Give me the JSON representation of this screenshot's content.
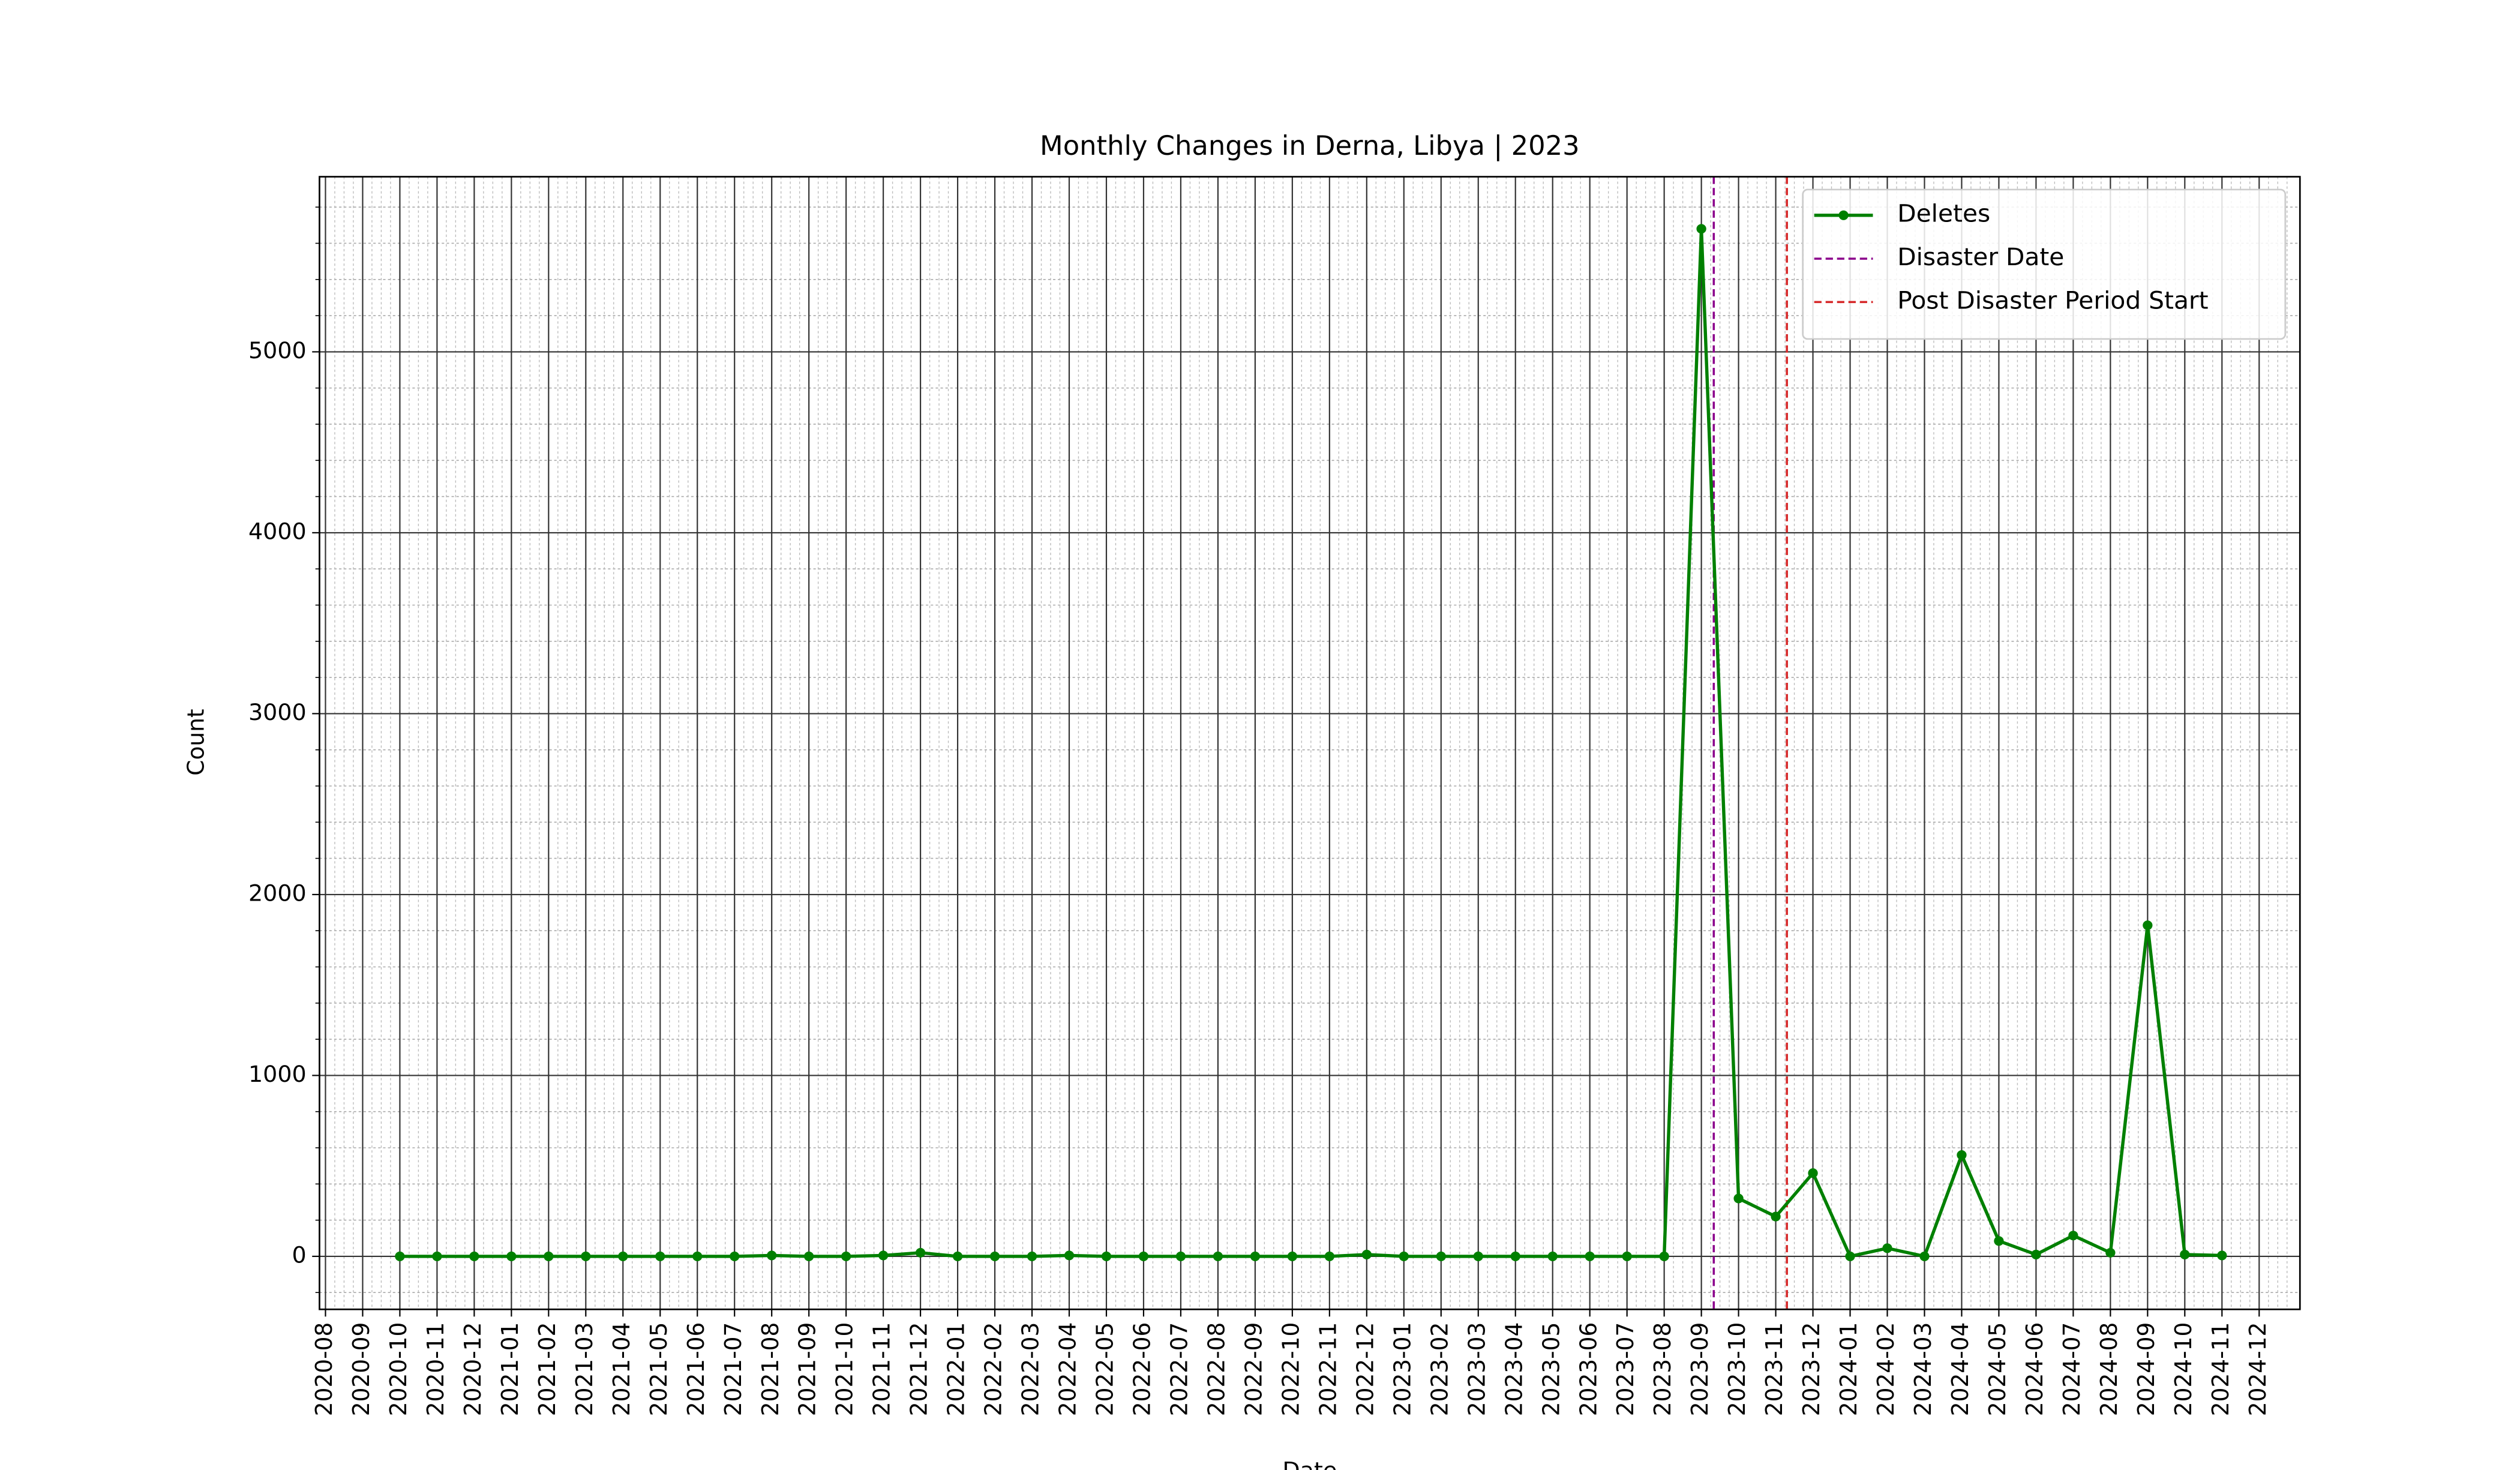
{
  "chart_data": {
    "type": "line",
    "title": "Monthly Changes in Derna, Libya | 2023",
    "xlabel": "Date",
    "ylabel": "Count",
    "x": [
      "2020-10",
      "2020-11",
      "2020-12",
      "2021-01",
      "2021-02",
      "2021-03",
      "2021-04",
      "2021-05",
      "2021-06",
      "2021-07",
      "2021-08",
      "2021-09",
      "2021-10",
      "2021-11",
      "2021-12",
      "2022-01",
      "2022-02",
      "2022-03",
      "2022-04",
      "2022-05",
      "2022-06",
      "2022-07",
      "2022-08",
      "2022-09",
      "2022-10",
      "2022-11",
      "2022-12",
      "2023-01",
      "2023-02",
      "2023-03",
      "2023-04",
      "2023-05",
      "2023-06",
      "2023-07",
      "2023-08",
      "2023-09",
      "2023-10",
      "2023-11",
      "2023-12",
      "2024-01",
      "2024-02",
      "2024-03",
      "2024-04",
      "2024-05",
      "2024-06",
      "2024-07",
      "2024-08",
      "2024-09",
      "2024-10",
      "2024-11"
    ],
    "series": [
      {
        "name": "Deletes",
        "color": "#008000",
        "values": [
          0,
          0,
          0,
          0,
          0,
          0,
          0,
          0,
          0,
          0,
          5,
          0,
          0,
          5,
          20,
          0,
          0,
          0,
          5,
          0,
          0,
          0,
          0,
          0,
          0,
          0,
          10,
          0,
          0,
          0,
          0,
          0,
          0,
          0,
          0,
          5680,
          320,
          220,
          460,
          0,
          45,
          0,
          560,
          85,
          10,
          115,
          20,
          1830,
          10,
          5
        ]
      }
    ],
    "vlines": [
      {
        "name": "Disaster Date",
        "color": "#8b008b",
        "x": "2023-09-11"
      },
      {
        "name": "Post Disaster Period Start",
        "color": "#d62728",
        "x": "2023-11-10"
      }
    ],
    "xlim": [
      "2020-07-27",
      "2025-01-04"
    ],
    "xticks": [
      "2020-08",
      "2020-09",
      "2020-10",
      "2020-11",
      "2020-12",
      "2021-01",
      "2021-02",
      "2021-03",
      "2021-04",
      "2021-05",
      "2021-06",
      "2021-07",
      "2021-08",
      "2021-09",
      "2021-10",
      "2021-11",
      "2021-12",
      "2022-01",
      "2022-02",
      "2022-03",
      "2022-04",
      "2022-05",
      "2022-06",
      "2022-07",
      "2022-08",
      "2022-09",
      "2022-10",
      "2022-11",
      "2022-12",
      "2023-01",
      "2023-02",
      "2023-03",
      "2023-04",
      "2023-05",
      "2023-06",
      "2023-07",
      "2023-08",
      "2023-09",
      "2023-10",
      "2023-11",
      "2023-12",
      "2024-01",
      "2024-02",
      "2024-03",
      "2024-04",
      "2024-05",
      "2024-06",
      "2024-07",
      "2024-08",
      "2024-09",
      "2024-10",
      "2024-11",
      "2024-12"
    ],
    "ylim": [
      -293,
      5968
    ],
    "yticks": [
      0,
      1000,
      2000,
      3000,
      4000,
      5000
    ],
    "yminorticks": [
      -200,
      200,
      400,
      600,
      800,
      1200,
      1400,
      1600,
      1800,
      2200,
      2400,
      2600,
      2800,
      3200,
      3400,
      3600,
      3800,
      4200,
      4400,
      4600,
      4800,
      5200,
      5400,
      5600,
      5800
    ],
    "grid": true,
    "legend": "upper right"
  }
}
